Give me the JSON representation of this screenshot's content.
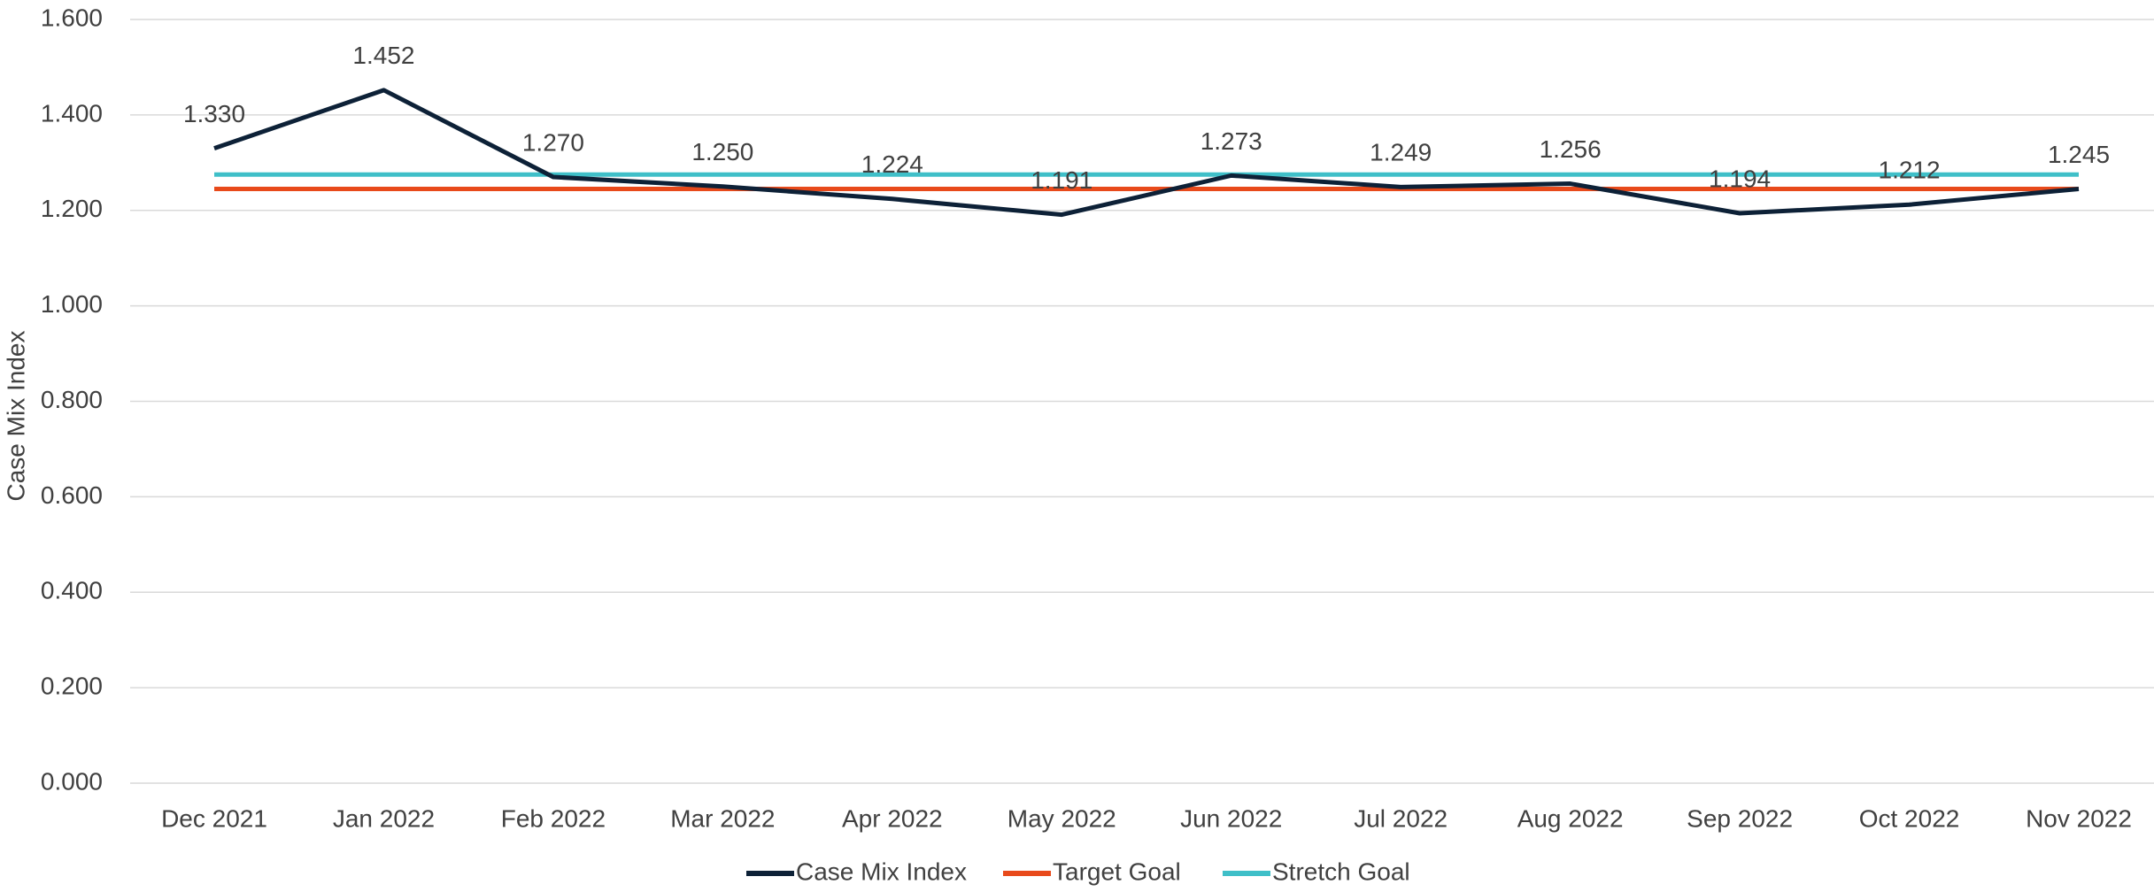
{
  "chart_data": {
    "type": "line",
    "ylabel": "Case Mix Index",
    "categories": [
      "Dec 2021",
      "Jan 2022",
      "Feb 2022",
      "Mar 2022",
      "Apr 2022",
      "May 2022",
      "Jun 2022",
      "Jul 2022",
      "Aug 2022",
      "Sep 2022",
      "Oct 2022",
      "Nov 2022"
    ],
    "series": [
      {
        "name": "Case Mix Index",
        "color": "#0d2137",
        "values": [
          1.33,
          1.452,
          1.27,
          1.25,
          1.224,
          1.191,
          1.273,
          1.249,
          1.256,
          1.194,
          1.212,
          1.245
        ],
        "value_labels": [
          "1.330",
          "1.452",
          "1.270",
          "1.250",
          "1.224",
          "1.191",
          "1.273",
          "1.249",
          "1.256",
          "1.194",
          "1.212",
          "1.245"
        ]
      },
      {
        "name": "Target Goal",
        "color": "#e84a1b",
        "values": [
          1.245,
          1.245,
          1.245,
          1.245,
          1.245,
          1.245,
          1.245,
          1.245,
          1.245,
          1.245,
          1.245,
          1.245
        ]
      },
      {
        "name": "Stretch Goal",
        "color": "#3fbfc8",
        "values": [
          1.275,
          1.275,
          1.275,
          1.275,
          1.275,
          1.275,
          1.275,
          1.275,
          1.275,
          1.275,
          1.275,
          1.275
        ]
      }
    ],
    "ylim": [
      0,
      1.6
    ],
    "yticks": [
      {
        "value": 0,
        "label": "0.000"
      },
      {
        "value": 0.2,
        "label": "0.200"
      },
      {
        "value": 0.4,
        "label": "0.400"
      },
      {
        "value": 0.6,
        "label": "0.600"
      },
      {
        "value": 0.8,
        "label": "0.800"
      },
      {
        "value": 1.0,
        "label": "1.000"
      },
      {
        "value": 1.2,
        "label": "1.200"
      },
      {
        "value": 1.4,
        "label": "1.400"
      },
      {
        "value": 1.6,
        "label": "1.600"
      }
    ],
    "grid": true,
    "legend": "bottom"
  }
}
